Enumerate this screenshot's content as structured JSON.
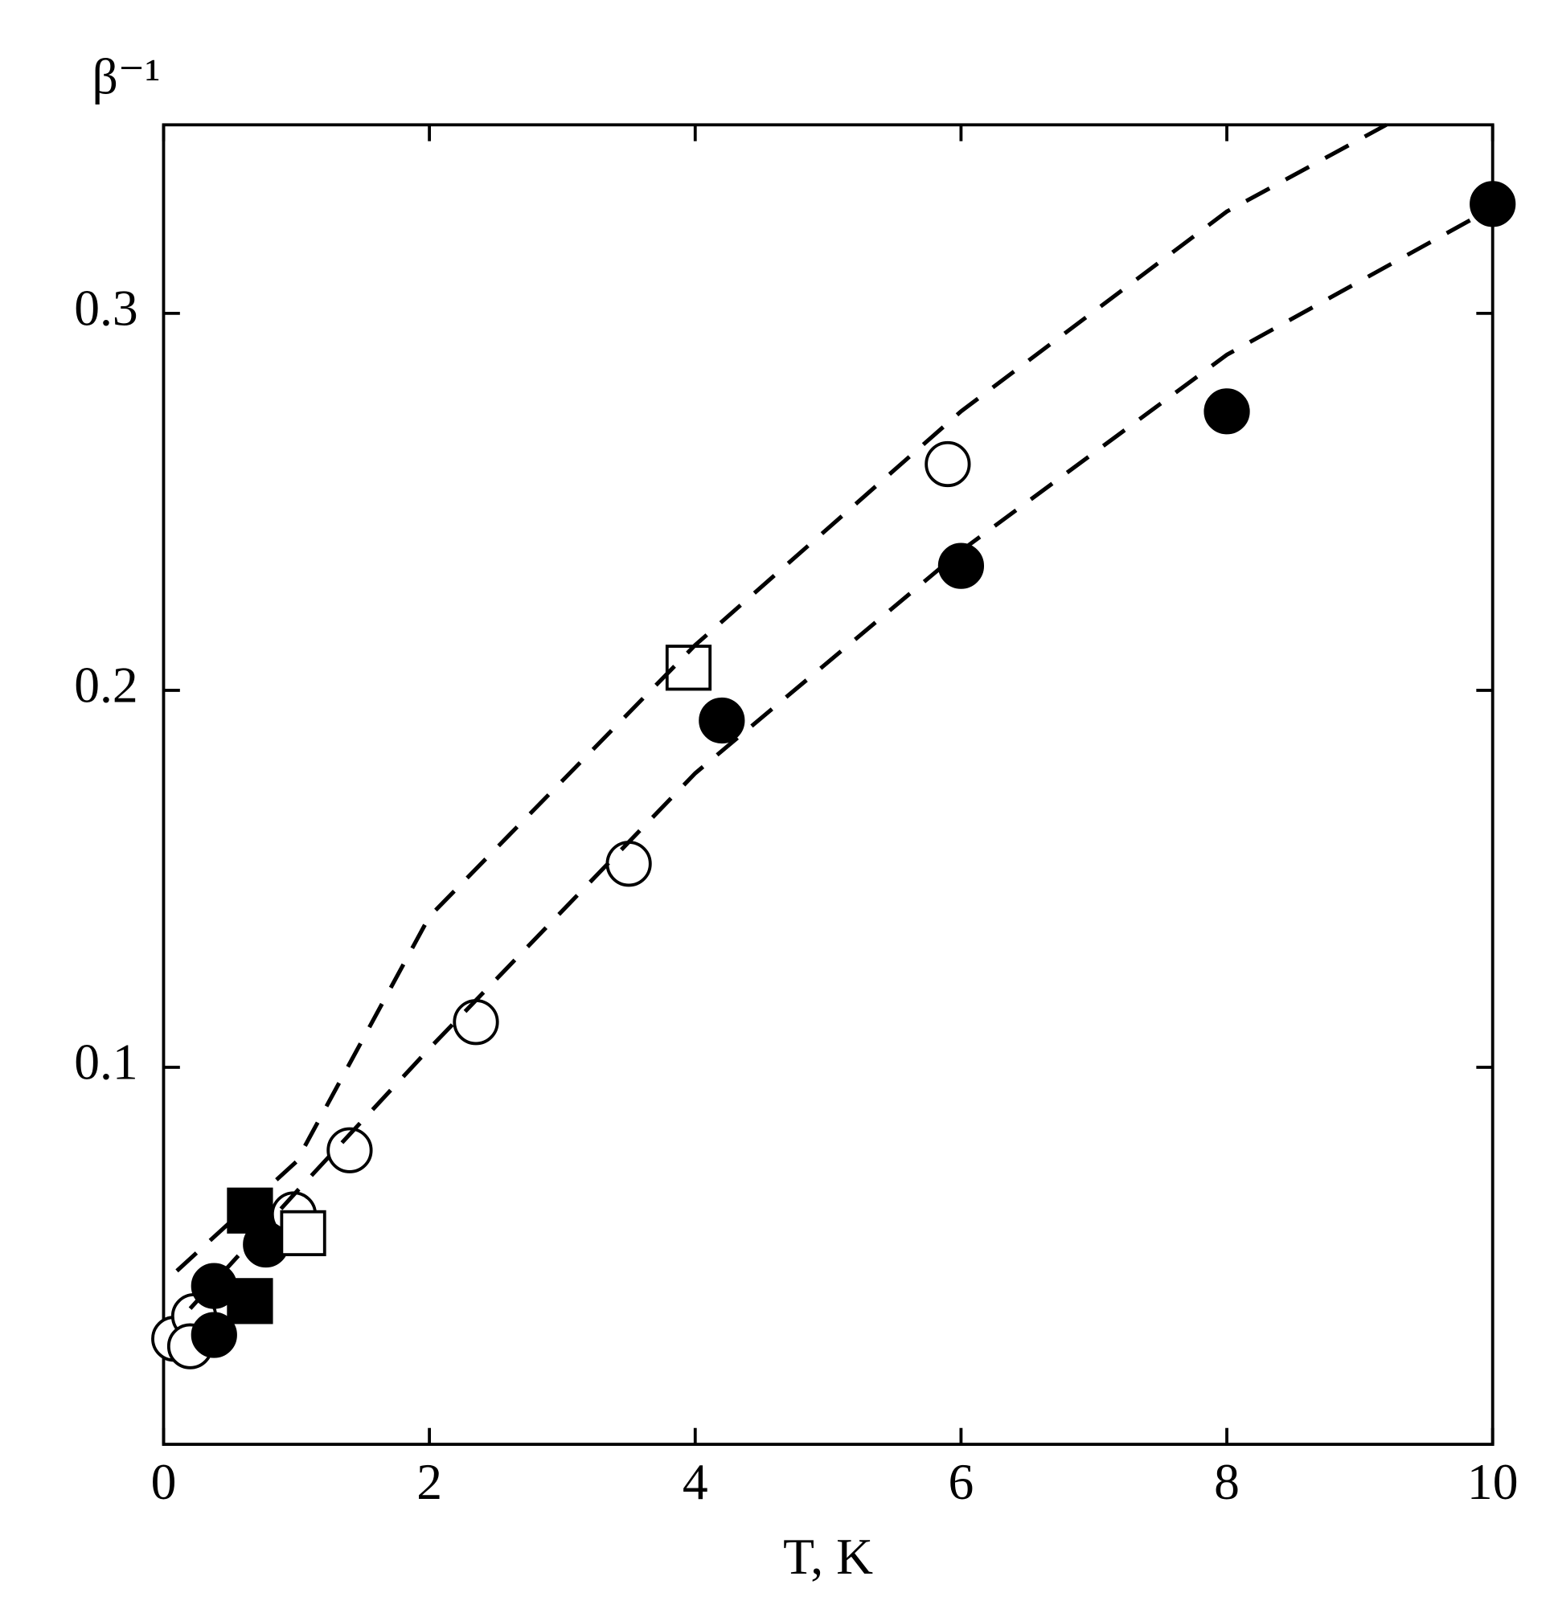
{
  "chart_data": {
    "type": "scatter",
    "x_label": "T, K",
    "y_label": "β⁻¹",
    "xlim": [
      0,
      10
    ],
    "ylim": [
      0,
      0.35
    ],
    "xticks": [
      0,
      2,
      4,
      6,
      8,
      10
    ],
    "yticks": [
      0.1,
      0.2,
      0.3
    ],
    "series": [
      {
        "marker": "circle",
        "filled": false,
        "color": "#000000",
        "x": [
          0.08,
          0.23,
          0.2,
          0.98,
          1.4,
          2.35,
          3.5,
          5.9
        ],
        "values": [
          0.028,
          0.034,
          0.026,
          0.061,
          0.078,
          0.112,
          0.154,
          0.26
        ]
      },
      {
        "marker": "circle",
        "filled": true,
        "color": "#000000",
        "x": [
          0.38,
          0.38,
          0.77,
          4.2,
          6.0,
          8.0,
          10.0
        ],
        "values": [
          0.042,
          0.029,
          0.053,
          0.192,
          0.233,
          0.274,
          0.329
        ]
      },
      {
        "marker": "square",
        "filled": true,
        "color": "#000000",
        "x": [
          0.65,
          0.65
        ],
        "values": [
          0.062,
          0.038
        ]
      },
      {
        "marker": "square",
        "filled": false,
        "color": "#000000",
        "x": [
          1.05,
          3.95
        ],
        "values": [
          0.056,
          0.206
        ]
      },
      {
        "marker": "dashed-line",
        "color": "#000000",
        "x": [
          0.1,
          1,
          2,
          4,
          6,
          8,
          9.2
        ],
        "values": [
          0.046,
          0.075,
          0.14,
          0.212,
          0.274,
          0.327,
          0.35
        ]
      },
      {
        "marker": "dashed-line",
        "color": "#000000",
        "x": [
          0.2,
          1,
          2,
          4,
          6,
          8,
          10
        ],
        "values": [
          0.036,
          0.067,
          0.105,
          0.178,
          0.237,
          0.289,
          0.328
        ]
      }
    ]
  }
}
